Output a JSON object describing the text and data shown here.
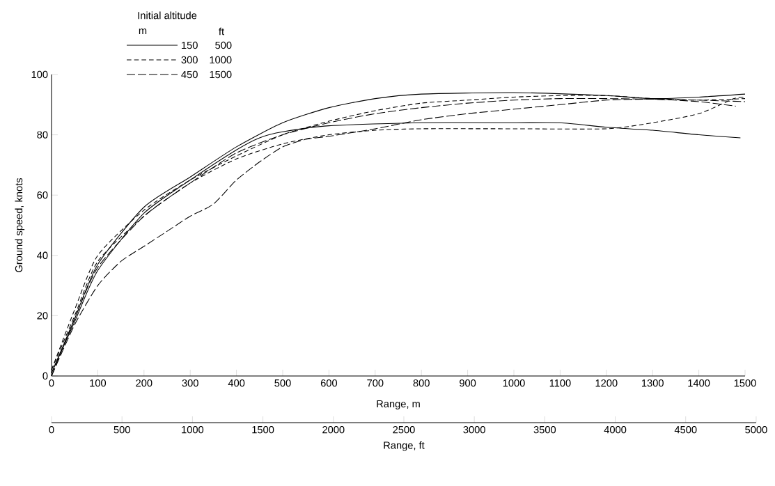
{
  "chart_data": {
    "type": "line",
    "xlabel": "Range, m",
    "ylabel": "Ground speed, knots",
    "x2label": "Range, ft",
    "legend_title": "Initial altitude",
    "legend": "top left",
    "annotations": [
      "m",
      "ft",
      "500",
      "1000",
      "1500"
    ],
    "xlim": [
      0,
      1500
    ],
    "xticks": [
      0,
      100,
      200,
      300,
      400,
      500,
      600,
      700,
      800,
      900,
      1000,
      1100,
      1200,
      1300,
      1400,
      1500
    ],
    "ylim": [
      0,
      100
    ],
    "yticks": [
      0,
      20,
      40,
      60,
      80,
      100
    ],
    "x2lim": [
      0,
      5000
    ],
    "x2ticks": [
      0,
      500,
      1000,
      1500,
      2000,
      2500,
      3000,
      3500,
      4000,
      4500,
      5000
    ],
    "series": [
      {
        "name": "150",
        "color": "#000000",
        "line_style": "solid",
        "x": [
          0,
          50,
          100,
          200,
          300,
          400,
          500,
          600,
          700,
          800,
          1000,
          1200,
          1300,
          1400,
          1500
        ],
        "values": [
          1,
          19,
          37,
          56,
          66,
          76,
          84,
          89,
          92,
          93.5,
          94,
          93,
          92,
          92.5,
          93.5
        ]
      },
      {
        "color": "#000000",
        "line_style": "solid",
        "x": [
          0,
          50,
          100,
          200,
          300,
          400,
          450,
          500,
          600,
          800,
          1000,
          1100,
          1200,
          1300,
          1400,
          1490
        ],
        "values": [
          1,
          18,
          35,
          54,
          65,
          75,
          79,
          81,
          83,
          84,
          84,
          84,
          82.5,
          81.5,
          80,
          79
        ]
      },
      {
        "name": "300",
        "color": "#000000",
        "line_style": "dashed",
        "x": [
          0,
          50,
          100,
          200,
          300,
          400,
          500,
          600,
          700,
          800,
          900,
          1000,
          1100,
          1200,
          1300,
          1400,
          1500
        ],
        "values": [
          2,
          22,
          40,
          55,
          65,
          73,
          80,
          84.5,
          88,
          90.5,
          91.5,
          92.5,
          93,
          93,
          92,
          91.5,
          92
        ]
      },
      {
        "color": "#000000",
        "line_style": "dashed",
        "x": [
          0,
          50,
          100,
          200,
          300,
          400,
          500,
          600,
          700,
          800,
          1000,
          1200,
          1300,
          1400,
          1476,
          1500
        ],
        "values": [
          2,
          20,
          38,
          53,
          64,
          72,
          77,
          80,
          81.5,
          82,
          82,
          82,
          84,
          87,
          92,
          92.5
        ]
      },
      {
        "name": "450",
        "color": "#000000",
        "line_style": "long dashed",
        "x": [
          0,
          50,
          100,
          150,
          200,
          250,
          300,
          350,
          400,
          450,
          500,
          550,
          600,
          700,
          800,
          900,
          1000,
          1100,
          1200,
          1300,
          1400,
          1480
        ],
        "values": [
          0,
          17,
          30,
          38,
          43,
          48,
          53,
          57,
          65,
          71,
          76,
          78.5,
          79.5,
          82,
          85,
          87,
          88.5,
          90,
          91.5,
          91.8,
          91,
          89.5
        ]
      },
      {
        "color": "#000000",
        "line_style": "long dashed",
        "x": [
          0,
          50,
          100,
          200,
          300,
          400,
          500,
          600,
          700,
          800,
          900,
          1000,
          1100,
          1200,
          1300,
          1400,
          1500
        ],
        "values": [
          0,
          19,
          36,
          53,
          64,
          74,
          80,
          84,
          87,
          89,
          90.5,
          91.5,
          92,
          92,
          91.8,
          91.5,
          91
        ]
      }
    ]
  }
}
